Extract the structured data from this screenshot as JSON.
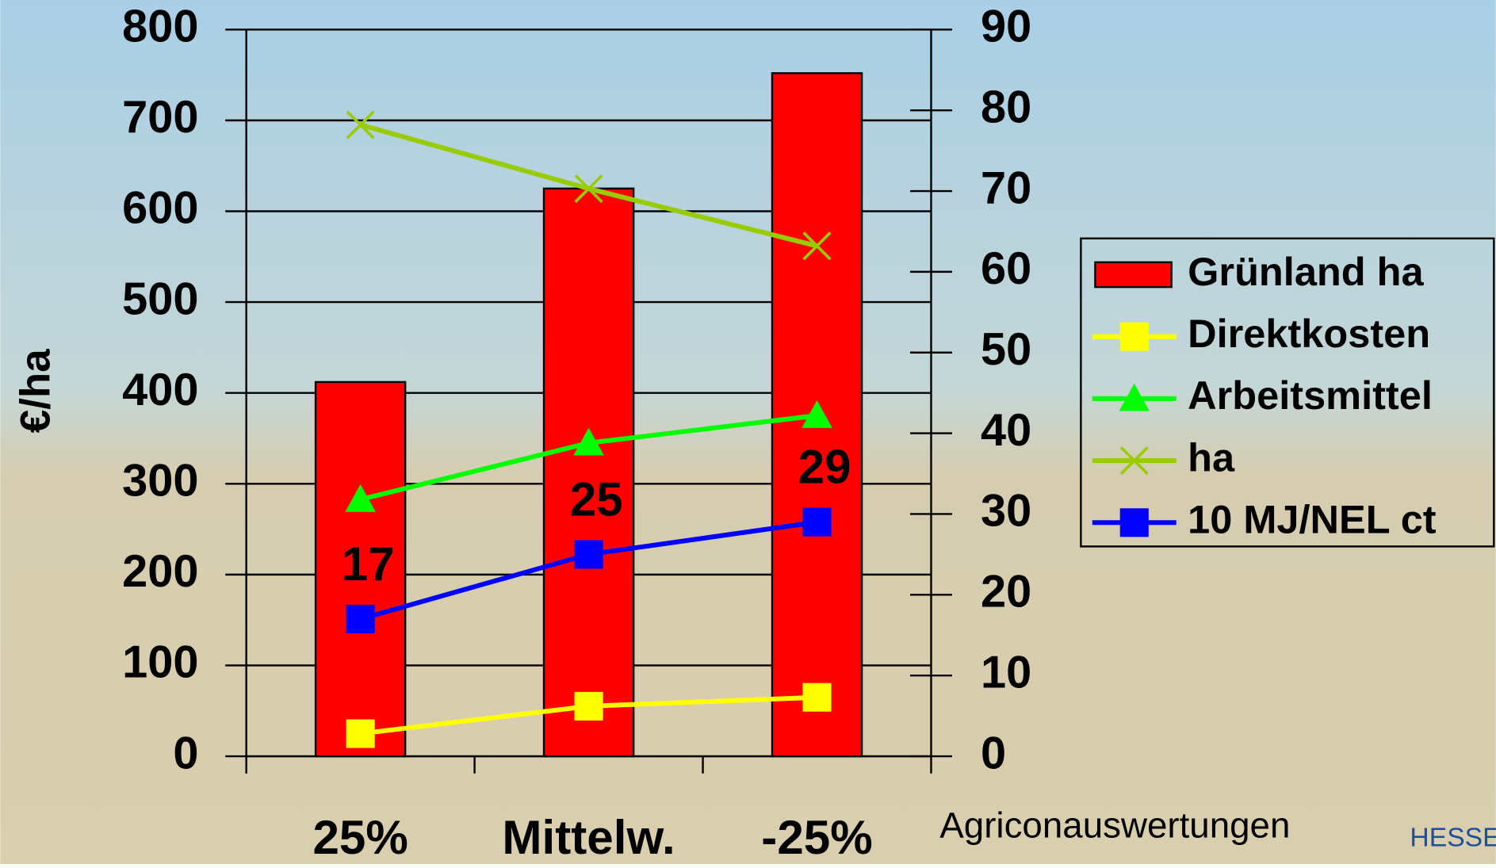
{
  "chart_data": {
    "type": "bar",
    "ylabel": "€/ha",
    "categories": [
      "25%",
      "Mittelw.",
      "-25%"
    ],
    "ylim": [
      0,
      800
    ],
    "yticks": [
      0,
      100,
      200,
      300,
      400,
      500,
      600,
      700,
      800
    ],
    "y2lim": [
      0,
      90
    ],
    "y2ticks": [
      0,
      10,
      20,
      30,
      40,
      50,
      60,
      70,
      80,
      90
    ],
    "grid": true,
    "legend": "right",
    "series": [
      {
        "name": "Grünland ha",
        "type": "bar",
        "color": "#ff0000",
        "values": [
          412,
          625,
          752
        ]
      },
      {
        "name": "Direktkosten",
        "type": "line",
        "axis": "y2",
        "marker": "square",
        "color": "#ffff00",
        "values": [
          2.8,
          6.2,
          7.3
        ]
      },
      {
        "name": "Arbeitsmittel",
        "type": "line",
        "axis": "y2",
        "marker": "triangle",
        "color": "#00ff00",
        "values": [
          31.8,
          38.8,
          42.2
        ]
      },
      {
        "name": "ha",
        "type": "line",
        "axis": "y2",
        "marker": "x",
        "color": "#99cc00",
        "values": [
          78.2,
          70.3,
          63.2
        ]
      },
      {
        "name": "10 MJ/NEL ct",
        "type": "line",
        "axis": "y2",
        "marker": "square",
        "color": "#0000ff",
        "values": [
          17,
          25,
          29
        ],
        "show_labels": true
      }
    ],
    "source": "Agriconauswertungen",
    "logo": "HESSE"
  }
}
